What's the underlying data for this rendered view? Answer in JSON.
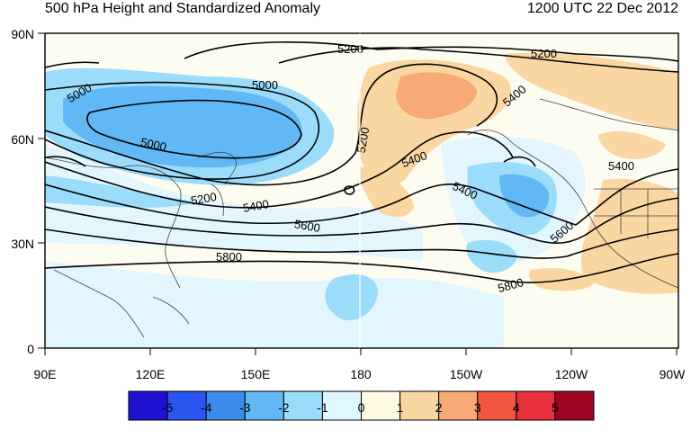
{
  "title_left": "500 hPa Height and Standardized Anomaly",
  "title_right": "1200 UTC 22 Dec 2012",
  "lat_labels": [
    "90N",
    "60N",
    "30N",
    "0"
  ],
  "lon_labels": [
    "90E",
    "120E",
    "150E",
    "180",
    "150W",
    "120W",
    "90W"
  ],
  "contour_labels": [
    "5000",
    "5000",
    "5000",
    "5200",
    "5200",
    "5200",
    "5200",
    "5400",
    "5400",
    "5400",
    "5400",
    "5400",
    "5600",
    "5600",
    "5800",
    "5800"
  ],
  "colorbar": {
    "labels": [
      "-5",
      "-4",
      "-3",
      "-2",
      "-1",
      "0",
      "1",
      "2",
      "3",
      "4",
      "5"
    ],
    "colors": [
      "#1e10d0",
      "#2a55f0",
      "#3c8be9",
      "#62b8f4",
      "#9bdcfb",
      "#dff7ff",
      "#fffbe3",
      "#fad6a2",
      "#f7aa73",
      "#f25640",
      "#e8303e",
      "#9e0525"
    ]
  },
  "colors": {
    "neg_light": "#dff7ff",
    "neg_mid": "#9bdcfb",
    "neg_strong": "#62b8f4",
    "pos_light": "#fffbe3",
    "pos_mid": "#fad6a2",
    "pos_strong": "#f7aa73"
  }
}
